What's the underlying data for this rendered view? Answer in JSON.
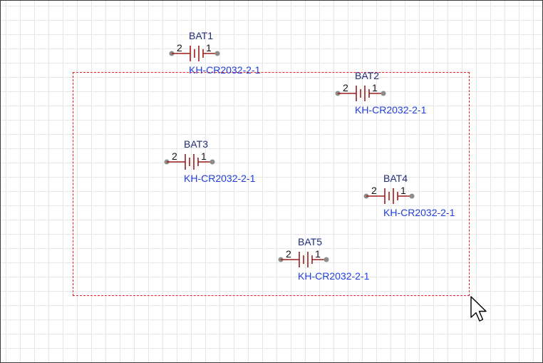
{
  "colors": {
    "symbol": "#9b1b1b",
    "pin_dot": "#8c8c8c",
    "designator": "#1f2a7a",
    "value": "#1f3ee0",
    "selection": "#ee1c25",
    "grid": "#e6e6e6"
  },
  "icons": {
    "cursor": "arrow-cursor-icon"
  },
  "components": [
    {
      "designator": "BAT1",
      "value": "KH-CR2032-2-1",
      "pin_left": "2",
      "pin_right": "1"
    },
    {
      "designator": "BAT2",
      "value": "KH-CR2032-2-1",
      "pin_left": "2",
      "pin_right": "1"
    },
    {
      "designator": "BAT3",
      "value": "KH-CR2032-2-1",
      "pin_left": "2",
      "pin_right": "1"
    },
    {
      "designator": "BAT4",
      "value": "KH-CR2032-2-1",
      "pin_left": "2",
      "pin_right": "1"
    },
    {
      "designator": "BAT5",
      "value": "KH-CR2032-2-1",
      "pin_left": "2",
      "pin_right": "1"
    }
  ]
}
